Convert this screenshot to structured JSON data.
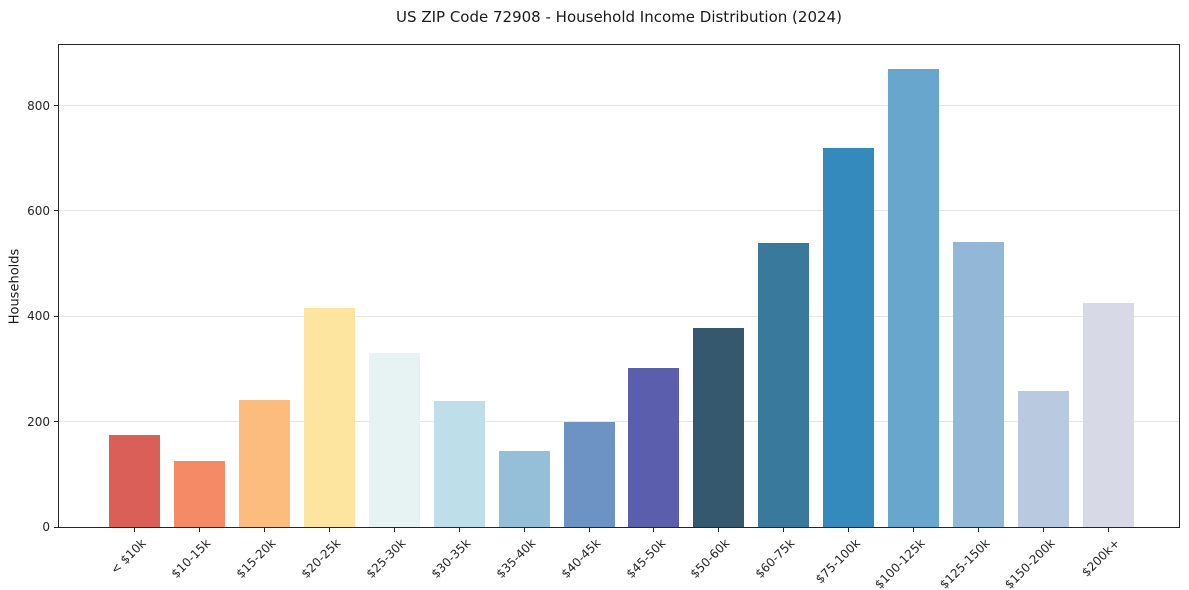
{
  "chart_data": {
    "type": "bar",
    "title": "US ZIP Code 72908 - Household Income Distribution (2024)",
    "xlabel": "",
    "ylabel": "Households",
    "ylim": [
      0,
      915
    ],
    "yticks": [
      0,
      200,
      400,
      600,
      800
    ],
    "grid": true,
    "legend": "none",
    "categories": [
      "< $10k",
      "$10-15k",
      "$15-20k",
      "$20-25k",
      "$25-30k",
      "$30-35k",
      "$35-40k",
      "$40-45k",
      "$45-50k",
      "$50-60k",
      "$60-75k",
      "$75-100k",
      "$100-125k",
      "$125-150k",
      "$150-200k",
      "$200k+"
    ],
    "values": [
      175,
      125,
      242,
      415,
      330,
      240,
      145,
      200,
      302,
      378,
      540,
      720,
      870,
      542,
      258,
      425
    ],
    "bar_colors": [
      "#d95f58",
      "#f58a67",
      "#fbbc7d",
      "#fde5a0",
      "#e7f3f3",
      "#bedfe9",
      "#95bed8",
      "#6d92c4",
      "#5a5ead",
      "#36586e",
      "#38799c",
      "#348abd",
      "#69a6cd",
      "#93b8d7",
      "#b8c9e0",
      "#d8d9e6"
    ],
    "frame_color": "#262626",
    "grid_color": "#e7e7e7"
  }
}
